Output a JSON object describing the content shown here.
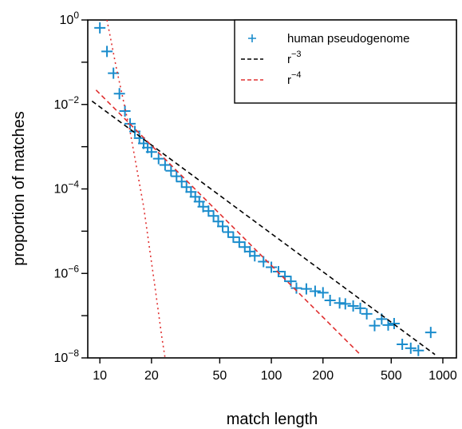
{
  "chart_data": {
    "type": "scatter",
    "xlabel": "match length",
    "ylabel": "proportion of matches",
    "xscale": "log",
    "yscale": "log",
    "xlim": [
      8.5,
      1200
    ],
    "ylim": [
      1e-08,
      1
    ],
    "xticks": [
      {
        "value": 10,
        "label": "10"
      },
      {
        "value": 20,
        "label": "20"
      },
      {
        "value": 50,
        "label": "50"
      },
      {
        "value": 100,
        "label": "100"
      },
      {
        "value": 200,
        "label": "200"
      },
      {
        "value": 500,
        "label": "500"
      },
      {
        "value": 1000,
        "label": "1000"
      }
    ],
    "yticks": [
      {
        "value": 1,
        "base": "10",
        "exp": "0"
      },
      {
        "value": 0.01,
        "base": "10",
        "exp": "−2"
      },
      {
        "value": 0.0001,
        "base": "10",
        "exp": "−4"
      },
      {
        "value": 1e-06,
        "base": "10",
        "exp": "−6"
      },
      {
        "value": 1e-08,
        "base": "10",
        "exp": "−8"
      }
    ],
    "yminor_ticks": [
      0.1,
      0.001,
      1e-05,
      1e-07
    ],
    "legend": {
      "position": "top-right",
      "entries": [
        {
          "label": "human pseudogenome",
          "style": "plus",
          "color": "#1a8ccc"
        },
        {
          "label": "r",
          "sup": "−3",
          "style": "dashed",
          "color": "#000000"
        },
        {
          "label": "r",
          "sup": "−4",
          "style": "dashed",
          "color": "#e03030"
        }
      ]
    },
    "series": [
      {
        "name": "human pseudogenome",
        "style": "plus",
        "color": "#1a8ccc",
        "points": [
          [
            10,
            0.65
          ],
          [
            11,
            0.18
          ],
          [
            12,
            0.055
          ],
          [
            13,
            0.018
          ],
          [
            14,
            0.007
          ],
          [
            15,
            0.0035
          ],
          [
            16,
            0.0023
          ],
          [
            17,
            0.0016
          ],
          [
            18,
            0.0012
          ],
          [
            19,
            0.00095
          ],
          [
            20,
            0.00075
          ],
          [
            22,
            0.00052
          ],
          [
            24,
            0.00037
          ],
          [
            26,
            0.00027
          ],
          [
            28,
            0.0002
          ],
          [
            30,
            0.00015
          ],
          [
            32,
            0.00011
          ],
          [
            34,
            8.5e-05
          ],
          [
            36,
            6.5e-05
          ],
          [
            38,
            5e-05
          ],
          [
            40,
            3.8e-05
          ],
          [
            43,
            3e-05
          ],
          [
            46,
            2.3e-05
          ],
          [
            49,
            1.7e-05
          ],
          [
            52,
            1.3e-05
          ],
          [
            56,
            9.5e-06
          ],
          [
            60,
            7.2e-06
          ],
          [
            65,
            5.5e-06
          ],
          [
            70,
            4.2e-06
          ],
          [
            75,
            3.3e-06
          ],
          [
            80,
            2.6e-06
          ],
          [
            90,
            1.9e-06
          ],
          [
            100,
            1.4e-06
          ],
          [
            110,
            1.1e-06
          ],
          [
            120,
            8.5e-07
          ],
          [
            130,
            6.5e-07
          ],
          [
            140,
            4.5e-07
          ],
          [
            160,
            4.3e-07
          ],
          [
            180,
            3.8e-07
          ],
          [
            200,
            3.5e-07
          ],
          [
            220,
            2.3e-07
          ],
          [
            250,
            2e-07
          ],
          [
            270,
            1.9e-07
          ],
          [
            300,
            1.7e-07
          ],
          [
            330,
            1.5e-07
          ],
          [
            360,
            1.1e-07
          ],
          [
            400,
            5.8e-08
          ],
          [
            440,
            8.3e-08
          ],
          [
            480,
            6e-08
          ],
          [
            520,
            6.5e-08
          ],
          [
            580,
            2.1e-08
          ],
          [
            650,
            1.7e-08
          ],
          [
            720,
            1.5e-08
          ],
          [
            850,
            4e-08
          ]
        ]
      },
      {
        "name": "r⁻³",
        "style": "dashed",
        "color": "#000000",
        "points": [
          [
            9,
            0.012
          ],
          [
            900,
            1.2e-08
          ]
        ]
      },
      {
        "name": "r⁻⁴",
        "style": "dashed",
        "color": "#e03030",
        "points": [
          [
            9.5,
            0.022
          ],
          [
            330,
            1.2e-08
          ]
        ]
      },
      {
        "style": "dotted",
        "color": "#e03030",
        "points": [
          [
            11,
            1
          ],
          [
            12.5,
            0.07
          ],
          [
            15,
            0.0023
          ],
          [
            18,
            3.8e-05
          ],
          [
            21,
            4.5e-07
          ],
          [
            23,
            3e-08
          ],
          [
            24,
            1e-08
          ]
        ]
      }
    ]
  }
}
